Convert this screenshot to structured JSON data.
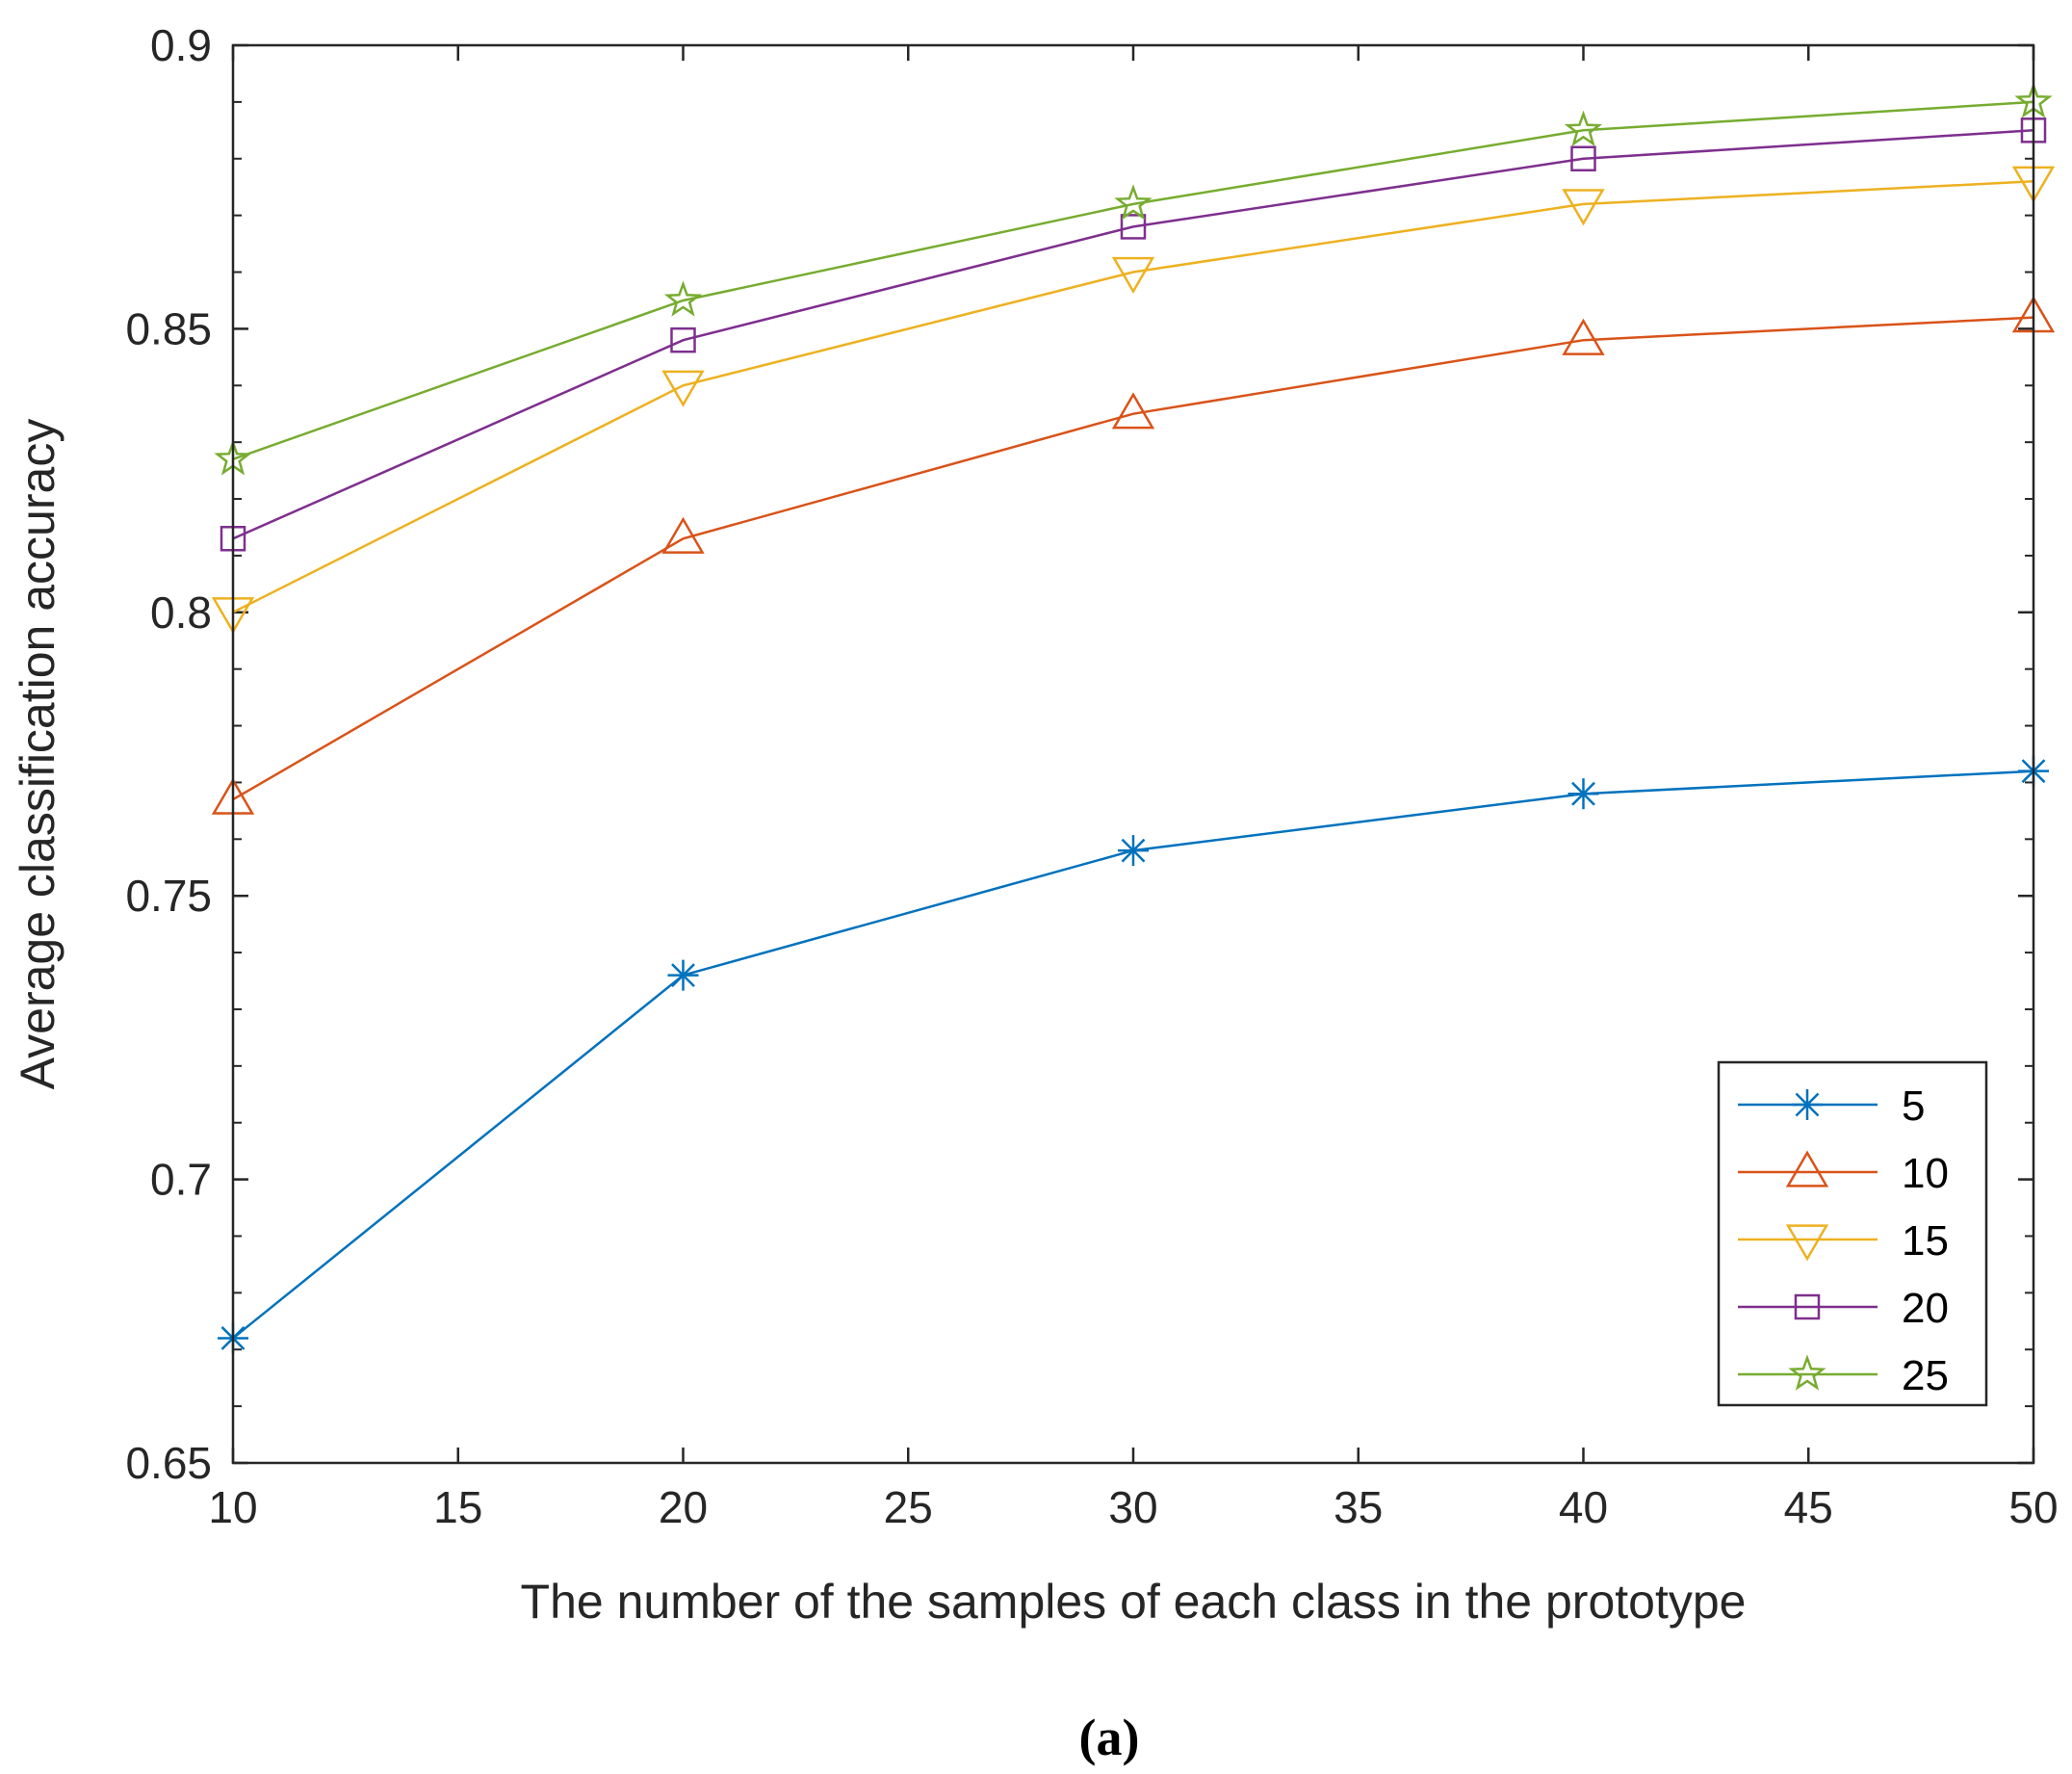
{
  "chart_data": {
    "type": "line",
    "title": "",
    "xlabel": "The number of the samples of each class in the prototype",
    "ylabel": "Average classification accuracy",
    "xlim": [
      10,
      50
    ],
    "ylim": [
      0.65,
      0.9
    ],
    "xticks": [
      10,
      15,
      20,
      25,
      30,
      35,
      40,
      45,
      50
    ],
    "xtick_labels": [
      "10",
      "15",
      "20",
      "25",
      "30",
      "35",
      "40",
      "45",
      "50"
    ],
    "yticks": [
      0.65,
      0.7,
      0.75,
      0.8,
      0.85,
      0.9
    ],
    "ytick_labels": [
      "0.65",
      "0.7",
      "0.75",
      "0.8",
      "0.85",
      "0.9"
    ],
    "grid": false,
    "legend_position": "bottom-right",
    "x": [
      10,
      20,
      30,
      40,
      50
    ],
    "series": [
      {
        "name": "5",
        "marker": "asterisk",
        "color": "#0072BD",
        "values": [
          0.672,
          0.736,
          0.758,
          0.768,
          0.772
        ]
      },
      {
        "name": "10",
        "marker": "triangle-up",
        "color": "#D95319",
        "values": [
          0.767,
          0.813,
          0.835,
          0.848,
          0.852
        ]
      },
      {
        "name": "15",
        "marker": "triangle-down",
        "color": "#EDB120",
        "values": [
          0.8,
          0.84,
          0.86,
          0.872,
          0.876
        ]
      },
      {
        "name": "20",
        "marker": "square",
        "color": "#7E2F8E",
        "values": [
          0.813,
          0.848,
          0.868,
          0.88,
          0.885
        ]
      },
      {
        "name": "25",
        "marker": "pentagram",
        "color": "#77AC30",
        "values": [
          0.827,
          0.855,
          0.872,
          0.885,
          0.89
        ]
      }
    ]
  },
  "caption": "(a)"
}
